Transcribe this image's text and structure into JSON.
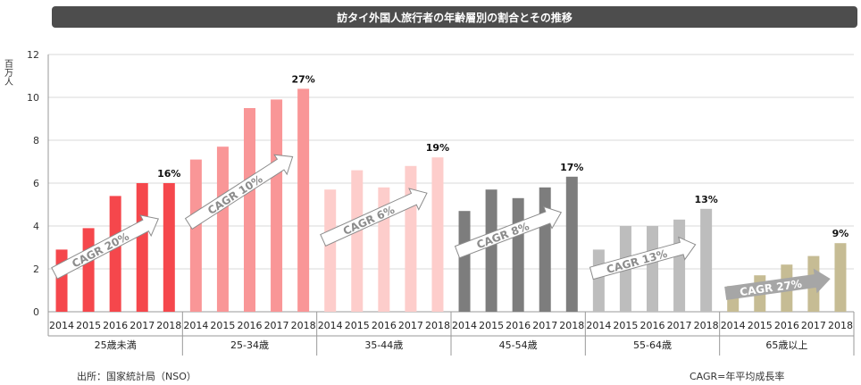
{
  "title": "訪タイ外国人旅行者の年齢層別の割合とその推移",
  "footer": {
    "source": "出所：国家統計局（NSO）",
    "cagr_note": "CAGR=年平均成長率"
  },
  "chart_data": {
    "type": "bar",
    "title": "訪タイ外国人旅行者の年齢層別の割合とその推移",
    "ylabel": "百万人",
    "ylim": [
      0,
      12
    ],
    "yticks": [
      "0",
      "2",
      "4",
      "6",
      "8",
      "10",
      "12"
    ],
    "grid": true,
    "years": [
      "2014",
      "2015",
      "2016",
      "2017",
      "2018"
    ],
    "groups": [
      {
        "name": "25歳未満",
        "values": [
          2.9,
          3.9,
          5.4,
          6.0,
          6.0
        ],
        "share": "16%",
        "cagr": "CAGR 20%",
        "color": "#f5474c"
      },
      {
        "name": "25-34歳",
        "values": [
          7.1,
          7.7,
          9.5,
          9.9,
          10.4
        ],
        "share": "27%",
        "cagr": "CAGR 10%",
        "color": "#f99697"
      },
      {
        "name": "35-44歳",
        "values": [
          5.7,
          6.6,
          5.8,
          6.8,
          7.2
        ],
        "share": "19%",
        "cagr": "CAGR 6%",
        "color": "#fdcdcb"
      },
      {
        "name": "45-54歳",
        "values": [
          4.7,
          5.7,
          5.3,
          5.8,
          6.3
        ],
        "share": "17%",
        "cagr": "CAGR 8%",
        "color": "#7d7d7d"
      },
      {
        "name": "55-64歳",
        "values": [
          2.9,
          4.0,
          4.0,
          4.3,
          4.8
        ],
        "share": "13%",
        "cagr": "CAGR 13%",
        "color": "#bdbdbd"
      },
      {
        "name": "65歳以上",
        "values": [
          1.2,
          1.7,
          2.2,
          2.6,
          3.2
        ],
        "share": "9%",
        "cagr": "CAGR 27%",
        "color": "#c6bc94"
      }
    ]
  }
}
